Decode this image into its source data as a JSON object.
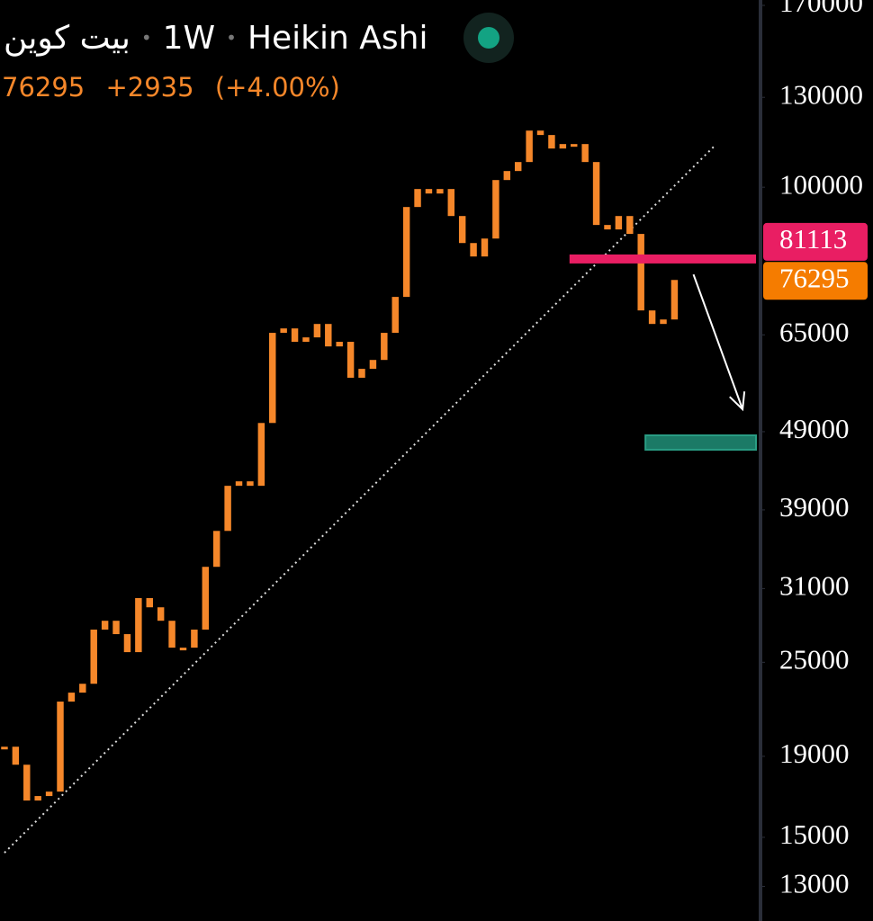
{
  "chart_data": {
    "type": "heikin_ashi",
    "title": "بيت كوين",
    "interval": "1W",
    "style": "Heikin Ashi",
    "last_price": "76295",
    "change": "+2935",
    "change_percent": "(+4.00%)",
    "color": "#f5872a",
    "log_scale": true,
    "ylim": [
      11750,
      172700
    ],
    "xlim": [
      -0.4,
      67.3
    ],
    "yticks": [
      170000,
      130000,
      100000,
      65000,
      49000,
      39000,
      31000,
      25000,
      19000,
      15000,
      13000
    ],
    "values": [
      19540,
      18540,
      16700,
      16920,
      17140,
      22290,
      22880,
      23480,
      27500,
      28220,
      27140,
      25750,
      30150,
      29350,
      28220,
      26090,
      26090,
      27500,
      33030,
      36680,
      41840,
      42390,
      41840,
      50260,
      65380,
      66230,
      63690,
      64520,
      67100,
      62840,
      63690,
      57350,
      58860,
      60410,
      65380,
      72610,
      94390,
      99480,
      98180,
      99480,
      91940,
      84970,
      81700,
      86090,
      102120,
      104840,
      107630,
      117970,
      116460,
      111960,
      113430,
      113430,
      107630,
      89570,
      88410,
      91940,
      87260,
      69800,
      67100,
      67980,
      76295
    ],
    "price_tags": [
      {
        "value": 81113,
        "color": "#e91e63"
      },
      {
        "value": 76295,
        "color": "#f57c00"
      }
    ],
    "resistance_line": {
      "value": 81113,
      "x_start": 50.6,
      "color": "#e91e63"
    },
    "support_zone": {
      "x_start": 57.4,
      "range": [
        46480,
        48480
      ],
      "color": "#1b7a66"
    },
    "trendline": {
      "x": [
        0,
        63.5
      ],
      "y": [
        14340,
        112500
      ]
    },
    "arrow": {
      "x": [
        61.7,
        66.1
      ],
      "y": [
        77530,
        52300
      ]
    }
  }
}
